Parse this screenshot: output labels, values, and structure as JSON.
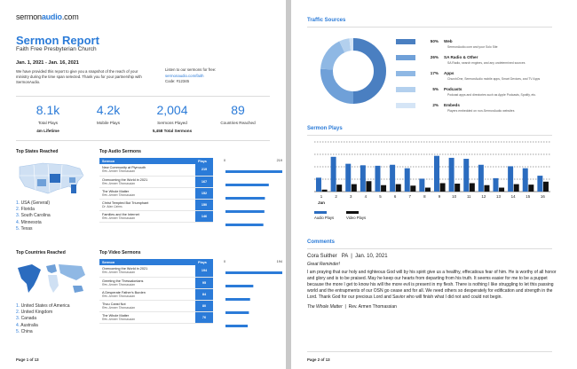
{
  "page1": {
    "logo": {
      "prefix": "sermon",
      "brand": "audio",
      "suffix": ".com"
    },
    "title": "Sermon Report",
    "church": "Faith Free Presbyterian Church",
    "dates": "Jan. 1, 2021 - Jan. 16, 2021",
    "intro": "We have provided this report to give you a snapshot of the reach of your ministry during the time span selected. Thank you for your partnership with SermonAudio.",
    "listen_label": "Listen to our sermons for free:",
    "listen_link": "sermonaudio.com/faith",
    "code": "Code: #12345",
    "stats": [
      {
        "value": "8.1k",
        "label": "Total Plays",
        "sub": "4m Lifetime"
      },
      {
        "value": "4.2k",
        "label": "Mobile Plays",
        "sub": ""
      },
      {
        "value": "2,004",
        "label": "Sermons Played",
        "sub": "5,458 Total Sermons"
      },
      {
        "value": "89",
        "label": "Countries Reached",
        "sub": ""
      }
    ],
    "top_states_title": "Top States Reached",
    "top_states": [
      "USA (General)",
      "Florida",
      "South Carolina",
      "Minnesota",
      "Texas"
    ],
    "top_countries_title": "Top Countries Reached",
    "top_countries": [
      "United States of America",
      "United Kingdom",
      "Canada",
      "Australia",
      "China"
    ],
    "audio_title": "Top Audio Sermons",
    "video_title": "Top Video Sermons",
    "col_sermon": "Sermon",
    "col_plays": "Plays",
    "audio_axis": [
      "0",
      "219"
    ],
    "video_axis": [
      "0",
      "194"
    ],
    "audio_sermons": [
      {
        "title": "New Community at Plymouth",
        "speaker": "Rev. Armen Thomassian",
        "plays": 219
      },
      {
        "title": "Overcoming the World in 2021",
        "speaker": "Rev. Armen Thomassian",
        "plays": 167
      },
      {
        "title": "The Whole Matter",
        "speaker": "Rev. Armen Thomassian",
        "plays": 152
      },
      {
        "title": "Christ Tempted But Triumphant",
        "speaker": "Dr. Alan Cairns",
        "plays": 150
      },
      {
        "title": "Families and the Internet",
        "speaker": "Rev. Armen Thomassian",
        "plays": 146
      }
    ],
    "video_sermons": [
      {
        "title": "Overcoming the World in 2021",
        "speaker": "Rev. Armen Thomassian",
        "plays": 194
      },
      {
        "title": "Greeting the Thessalonians",
        "speaker": "Rev. Armen Thomassian",
        "plays": 95
      },
      {
        "title": "A Desperate Father's Burden",
        "speaker": "Rev. Armen Thomassian",
        "plays": 84
      },
      {
        "title": "Thou Canst Not",
        "speaker": "Rev. Armen Thomassian",
        "plays": 80
      },
      {
        "title": "The Whole Matter",
        "speaker": "Rev. Armen Thomassian",
        "plays": 76
      }
    ],
    "footer": "Page 1 of 13"
  },
  "page2": {
    "traffic_title": "Traffic Sources",
    "traffic": [
      {
        "pct": "50%",
        "name": "Web",
        "desc": "SermonAudio.com and your Solo Site",
        "value": 50,
        "color": "#4a7fc1"
      },
      {
        "pct": "26%",
        "name": "SA Radio & Other",
        "desc": "SA Radio, search engines, and any undetermined sources",
        "value": 26,
        "color": "#6fa0d8"
      },
      {
        "pct": "17%",
        "name": "Apps",
        "desc": "ChurchOne, SermonAudio mobile apps, Smart Devices, and TV Apps",
        "value": 17,
        "color": "#8fb8e4"
      },
      {
        "pct": "5%",
        "name": "Podcasts",
        "desc": "Podcast apps and directories such as Apple Podcasts, Spotify, etc.",
        "value": 5,
        "color": "#b3d0ee"
      },
      {
        "pct": "2%",
        "name": "Embeds",
        "desc": "Players embedded on non-SermonAudio websites",
        "value": 2,
        "color": "#d5e5f6"
      }
    ],
    "plays_title": "Sermon Plays",
    "comments_title": "Comments",
    "comment": {
      "author": "Cora Suither",
      "location": "PA",
      "date": "Jan. 10, 2021",
      "headline": "Great Reminder!",
      "body": "I am praying that our holy and righteous God will by his spirit give us a healthy, effecatious fear of him. He is worthy of all honor and glory and is to be praised. May he keep our hearts from departing from his truth. It seems easier for me to be a puppet because the more I get to know his will the more evil is present in my flesh. There is nothing I like struggling to let this passing world and the entrapments of our OSN go cease and for all. We need others so desperately for edification and strength in the Lord. Thank God for our precious Lord and Savior who will finish what I did not and could not begin.",
      "sermon": "The Whole Matter",
      "speaker": "Rev. Armen Thomassian"
    },
    "footer": "Page 2 of 13"
  },
  "chart_data": [
    {
      "type": "bar",
      "title": "Sermon Plays",
      "categories": [
        "1",
        "2",
        "3",
        "4",
        "5",
        "6",
        "7",
        "8",
        "9",
        "10",
        "11",
        "12",
        "13",
        "14",
        "15",
        "16"
      ],
      "category_group_label": "Jan",
      "ylim": [
        0,
        1000
      ],
      "grid": true,
      "legend": "bottom-left",
      "series": [
        {
          "name": "Audio Plays",
          "color": "#2b6cbf",
          "values": [
            280,
            700,
            560,
            530,
            520,
            540,
            470,
            260,
            720,
            680,
            660,
            540,
            270,
            510,
            470,
            320
          ]
        },
        {
          "name": "Video Plays",
          "color": "#111111",
          "values": [
            40,
            140,
            150,
            210,
            130,
            150,
            120,
            80,
            170,
            160,
            170,
            130,
            80,
            150,
            140,
            200
          ]
        }
      ]
    },
    {
      "type": "pie",
      "title": "Traffic Sources",
      "categories": [
        "Web",
        "SA Radio & Other",
        "Apps",
        "Podcasts",
        "Embeds"
      ],
      "values": [
        50,
        26,
        17,
        5,
        2
      ]
    }
  ]
}
